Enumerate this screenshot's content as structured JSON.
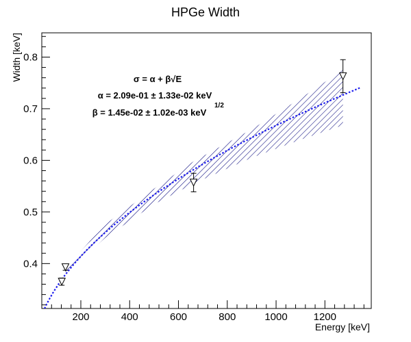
{
  "chart_data": {
    "type": "scatter",
    "title": "HPGe Width",
    "xlabel": "Energy [keV]",
    "ylabel": "Width [keV]",
    "xlim": [
      40,
      1390
    ],
    "ylim": [
      0.313,
      0.847
    ],
    "x_ticks": [
      200,
      400,
      600,
      800,
      1000,
      1200
    ],
    "x_tick_labels": [
      "200",
      "400",
      "600",
      "800",
      "1000",
      "1200"
    ],
    "y_ticks": [
      0.4,
      0.5,
      0.6,
      0.7,
      0.8
    ],
    "y_tick_labels": [
      "0.4",
      "0.5",
      "0.6",
      "0.7",
      "0.8"
    ],
    "grid": false,
    "series": [
      {
        "kind": "data-points",
        "marker": "open-down-triangle",
        "color": "#000000",
        "points": [
          {
            "x": 122,
            "y": 0.365,
            "yerr": 0.007
          },
          {
            "x": 137,
            "y": 0.393,
            "yerr": 0.006
          },
          {
            "x": 662,
            "y": 0.557,
            "yerr": 0.018
          },
          {
            "x": 1274,
            "y": 0.763,
            "yerr": 0.032
          }
        ]
      },
      {
        "kind": "fit-curve",
        "style": "dotted",
        "color": "#1a1aee",
        "model": "sqrt",
        "alpha": 0.209,
        "beta": 0.0145,
        "x_range": [
          40,
          1345
        ]
      },
      {
        "kind": "confidence-band",
        "style": "hatched",
        "color": "#00007a",
        "x": [
          137,
          300,
          500,
          662,
          900,
          1100,
          1274
        ],
        "upper": [
          0.392,
          0.476,
          0.545,
          0.598,
          0.66,
          0.72,
          0.775
        ],
        "lower": [
          0.38,
          0.45,
          0.515,
          0.555,
          0.605,
          0.64,
          0.668
        ]
      }
    ],
    "annotations": [
      {
        "id": "model",
        "text": "σ = α + β√E"
      },
      {
        "id": "alpha",
        "text": "α = 2.09e-01 ± 1.33e-02 keV"
      },
      {
        "id": "beta",
        "text": "β = 1.45e-02 ± 1.02e-03 keV",
        "superscript": "1/2"
      }
    ]
  }
}
